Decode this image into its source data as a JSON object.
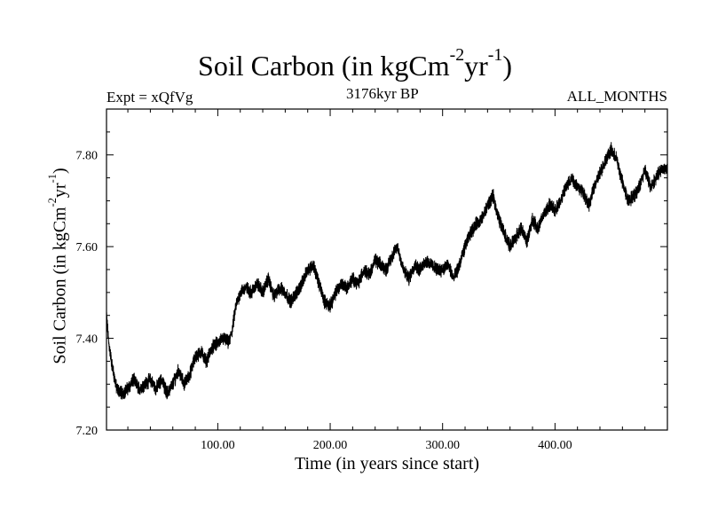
{
  "chart_data": {
    "type": "line",
    "title_main": "Soil Carbon (in kgCm",
    "title_exp1": "-2",
    "title_mid": "yr",
    "title_exp2": "-1",
    "title_end": ")",
    "subtitle": "3176kyr BP",
    "left_label": "Expt = xQfVg",
    "right_label": "ALL_MONTHS",
    "xlabel": "Time (in years since start)",
    "ylabel_main": "Soil Carbon (in kgCm",
    "ylabel_exp1": "-2",
    "ylabel_mid": "yr",
    "ylabel_exp2": "-1",
    "ylabel_end": ")",
    "xlim": [
      1,
      500
    ],
    "ylim": [
      7.2,
      7.9
    ],
    "xticks": [
      100,
      200,
      300,
      400
    ],
    "xtick_labels": [
      "100.00",
      "200.00",
      "300.00",
      "400.00"
    ],
    "yticks": [
      7.2,
      7.4,
      7.6,
      7.8
    ],
    "ytick_labels": [
      "7.20",
      "7.40",
      "7.60",
      "7.80"
    ],
    "series": [
      {
        "name": "Soil Carbon",
        "color": "#000000",
        "noise_amplitude": 0.012,
        "x": [
          1,
          3,
          6,
          10,
          15,
          20,
          25,
          30,
          35,
          40,
          45,
          50,
          55,
          60,
          65,
          70,
          75,
          80,
          85,
          90,
          95,
          100,
          105,
          110,
          113,
          116,
          120,
          125,
          130,
          135,
          140,
          145,
          150,
          155,
          160,
          165,
          170,
          175,
          180,
          185,
          190,
          195,
          200,
          205,
          210,
          215,
          220,
          225,
          230,
          235,
          240,
          245,
          250,
          255,
          260,
          265,
          270,
          275,
          280,
          285,
          290,
          295,
          300,
          305,
          310,
          315,
          320,
          325,
          330,
          335,
          340,
          345,
          350,
          355,
          360,
          365,
          370,
          375,
          380,
          385,
          390,
          395,
          400,
          405,
          410,
          415,
          420,
          425,
          430,
          435,
          440,
          445,
          450,
          455,
          460,
          465,
          470,
          475,
          480,
          485,
          490,
          495,
          500
        ],
        "values": [
          7.45,
          7.39,
          7.34,
          7.29,
          7.28,
          7.29,
          7.31,
          7.29,
          7.3,
          7.31,
          7.29,
          7.31,
          7.28,
          7.3,
          7.33,
          7.3,
          7.32,
          7.36,
          7.37,
          7.35,
          7.38,
          7.39,
          7.4,
          7.39,
          7.42,
          7.47,
          7.5,
          7.51,
          7.5,
          7.52,
          7.5,
          7.53,
          7.49,
          7.51,
          7.5,
          7.48,
          7.5,
          7.52,
          7.55,
          7.56,
          7.52,
          7.48,
          7.47,
          7.5,
          7.52,
          7.51,
          7.53,
          7.52,
          7.55,
          7.54,
          7.57,
          7.56,
          7.55,
          7.58,
          7.6,
          7.55,
          7.53,
          7.56,
          7.55,
          7.57,
          7.56,
          7.55,
          7.55,
          7.56,
          7.53,
          7.56,
          7.6,
          7.63,
          7.65,
          7.66,
          7.69,
          7.71,
          7.66,
          7.63,
          7.6,
          7.62,
          7.64,
          7.61,
          7.66,
          7.64,
          7.67,
          7.69,
          7.68,
          7.7,
          7.73,
          7.75,
          7.73,
          7.72,
          7.69,
          7.73,
          7.76,
          7.79,
          7.81,
          7.79,
          7.74,
          7.7,
          7.71,
          7.73,
          7.77,
          7.73,
          7.75,
          7.77,
          7.77
        ]
      }
    ]
  }
}
